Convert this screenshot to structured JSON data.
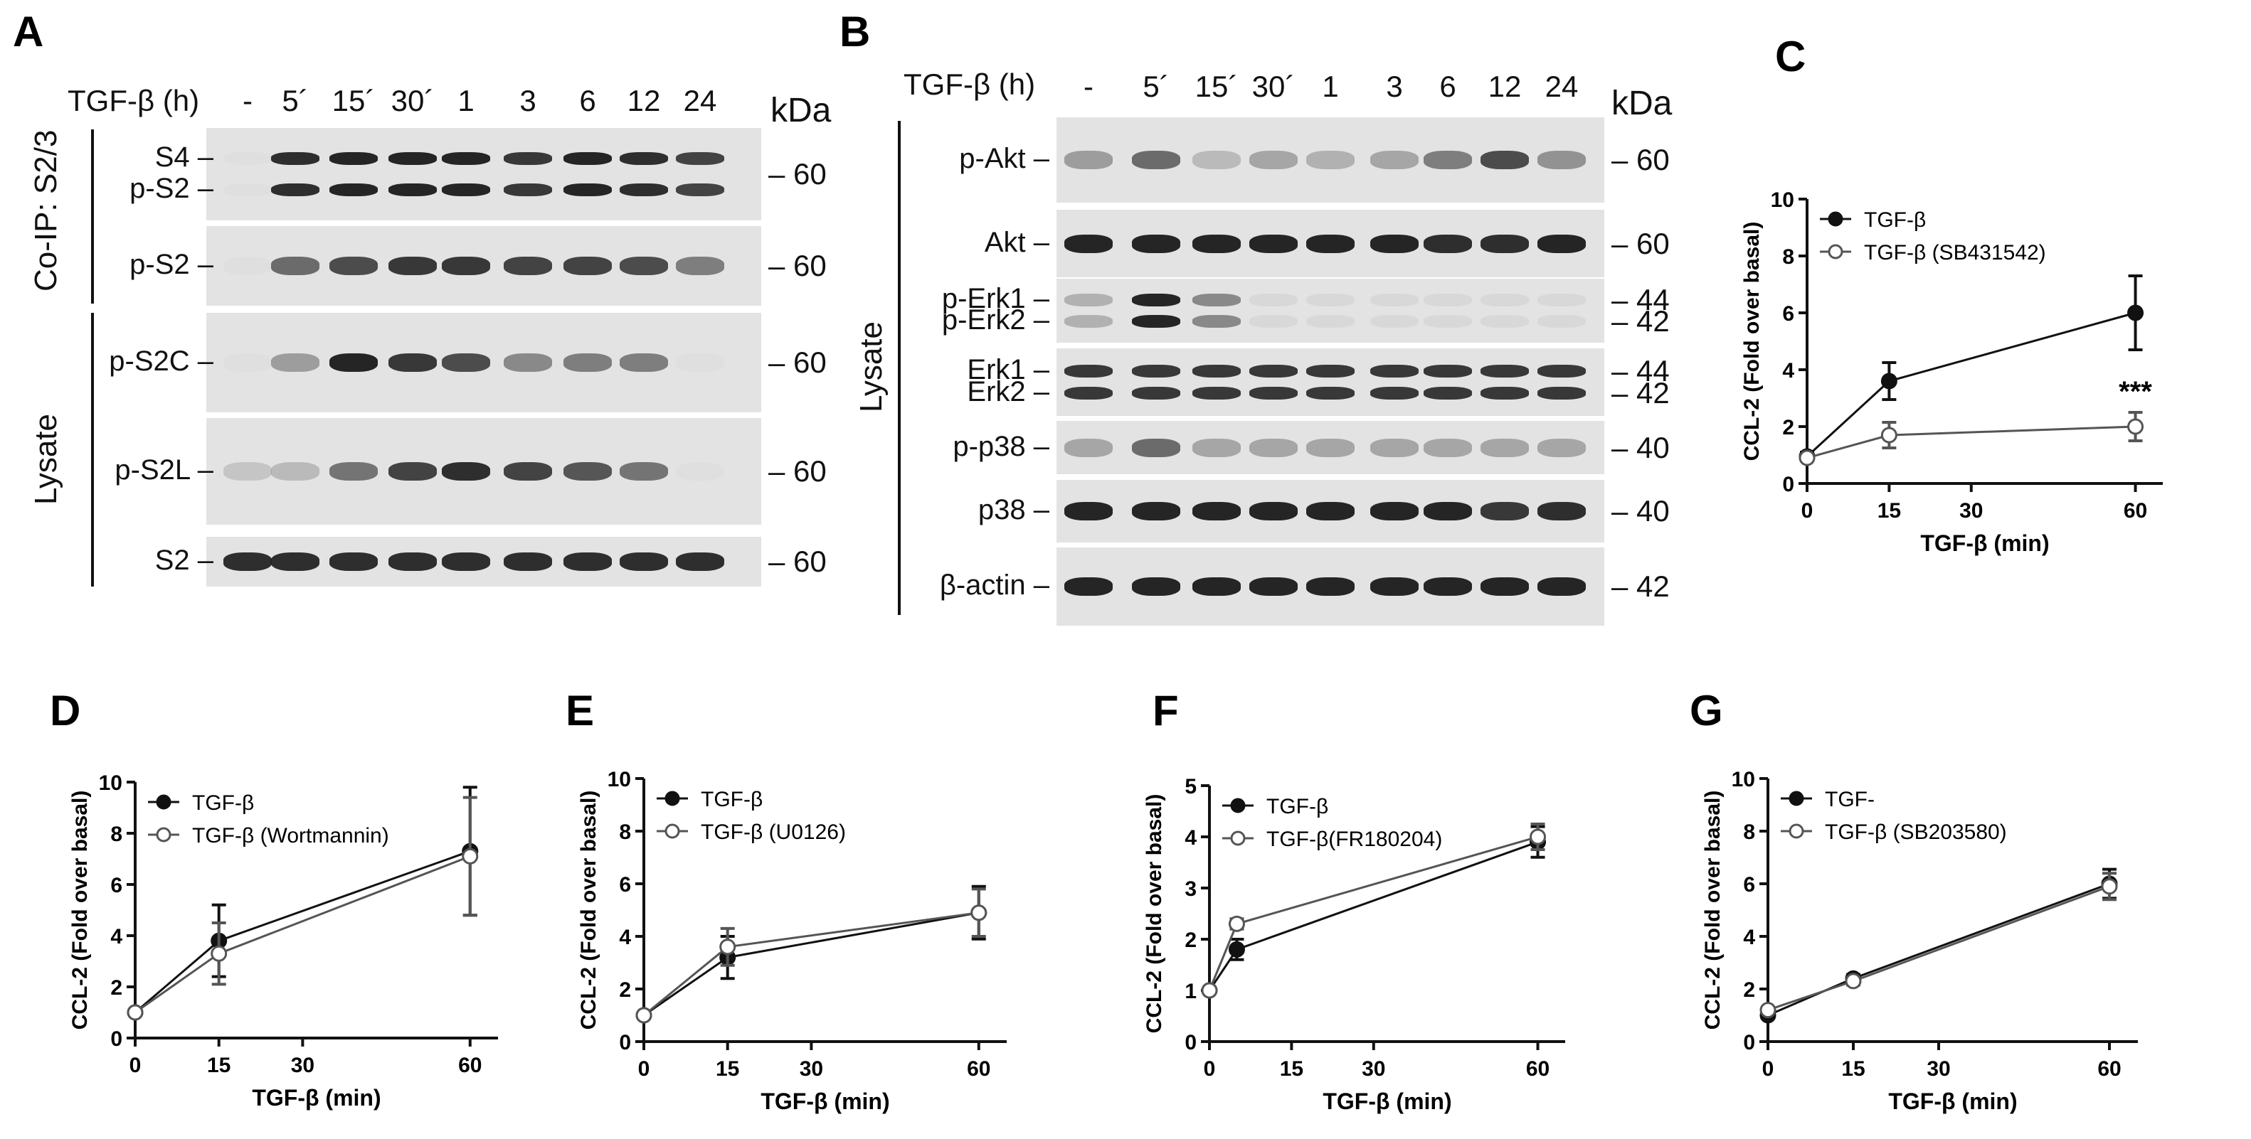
{
  "panel_labels": {
    "A": "A",
    "B": "B",
    "C": "C",
    "D": "D",
    "E": "E",
    "F": "F",
    "G": "G"
  },
  "blot_header": {
    "treatment": "TGF-β (h)",
    "lanes": [
      "-",
      "5´",
      "15´",
      "30´",
      "1",
      "3",
      "6",
      "12",
      "24"
    ],
    "mw_unit": "kDa"
  },
  "panel_a": {
    "group_coip": "Co-IP: S2/3",
    "group_lysate": "Lysate",
    "rows": [
      {
        "labels": [
          "S4",
          "p-S2"
        ],
        "marker": "60",
        "intensity": [
          0,
          0.9,
          0.95,
          0.95,
          0.95,
          0.85,
          0.95,
          0.9,
          0.8
        ]
      },
      {
        "labels": [
          "p-S2"
        ],
        "marker": "60",
        "intensity": [
          0,
          0.6,
          0.75,
          0.85,
          0.85,
          0.8,
          0.8,
          0.75,
          0.5
        ]
      },
      {
        "labels": [
          "p-S2C"
        ],
        "marker": "60",
        "intensity": [
          0,
          0.35,
          0.95,
          0.85,
          0.75,
          0.45,
          0.5,
          0.5,
          0
        ]
      },
      {
        "labels": [
          "p-S2L"
        ],
        "marker": "60",
        "intensity": [
          0.15,
          0.2,
          0.55,
          0.8,
          0.9,
          0.8,
          0.7,
          0.55,
          0
        ]
      },
      {
        "labels": [
          "S2"
        ],
        "marker": "60",
        "intensity": [
          0.9,
          0.9,
          0.9,
          0.9,
          0.9,
          0.9,
          0.9,
          0.9,
          0.9
        ]
      }
    ]
  },
  "panel_b": {
    "group_lysate": "Lysate",
    "rows": [
      {
        "labels": [
          "p-Akt"
        ],
        "markers": [
          "60"
        ],
        "intensity": [
          0.35,
          0.6,
          0.2,
          0.3,
          0.25,
          0.3,
          0.5,
          0.75,
          0.4
        ]
      },
      {
        "labels": [
          "Akt"
        ],
        "markers": [
          "60"
        ],
        "intensity": [
          0.95,
          0.95,
          0.95,
          0.95,
          0.95,
          0.95,
          0.9,
          0.9,
          0.95
        ]
      },
      {
        "labels": [
          "p-Erk1",
          "p-Erk2"
        ],
        "markers": [
          "44",
          "42"
        ],
        "intensity": [
          0.25,
          0.95,
          0.45,
          0.05,
          0.05,
          0.05,
          0.05,
          0.05,
          0.05
        ]
      },
      {
        "labels": [
          "Erk1",
          "Erk2"
        ],
        "markers": [
          "44",
          "42"
        ],
        "intensity": [
          0.85,
          0.85,
          0.85,
          0.85,
          0.85,
          0.85,
          0.85,
          0.85,
          0.85
        ]
      },
      {
        "labels": [
          "p-p38"
        ],
        "markers": [
          "40"
        ],
        "intensity": [
          0.3,
          0.6,
          0.3,
          0.3,
          0.3,
          0.3,
          0.3,
          0.3,
          0.3
        ]
      },
      {
        "labels": [
          "p38"
        ],
        "markers": [
          "40"
        ],
        "intensity": [
          0.95,
          0.95,
          0.95,
          0.95,
          0.95,
          0.95,
          0.95,
          0.85,
          0.9
        ]
      },
      {
        "labels": [
          "β-actin"
        ],
        "markers": [
          "42"
        ],
        "intensity": [
          0.95,
          0.95,
          0.95,
          0.95,
          0.95,
          0.95,
          0.95,
          0.95,
          0.95
        ]
      }
    ]
  },
  "chart_data": [
    {
      "panel": "C",
      "type": "line",
      "xlabel": "TGF-β (min)",
      "ylabel": "CCL-2  (Fold over basal)",
      "xlim": [
        0,
        65
      ],
      "ylim": [
        0,
        10
      ],
      "xticks": [
        0,
        15,
        30,
        60
      ],
      "yticks": [
        0,
        2,
        4,
        6,
        8,
        10
      ],
      "legend": "top-left",
      "annotation": {
        "text": "***",
        "x": 60,
        "y": 2.9
      },
      "series": [
        {
          "name": "TGF-β",
          "marker": "filled",
          "x": [
            0,
            15,
            60
          ],
          "y": [
            0.95,
            3.6,
            6.0
          ],
          "err": [
            0.15,
            0.65,
            1.3
          ]
        },
        {
          "name": "TGF-β (SB431542)",
          "marker": "open",
          "x": [
            0,
            15,
            60
          ],
          "y": [
            0.9,
            1.7,
            2.0
          ],
          "err": [
            0.1,
            0.45,
            0.5
          ]
        }
      ]
    },
    {
      "panel": "D",
      "type": "line",
      "xlabel": "TGF-β (min)",
      "ylabel": "CCL-2  (Fold over basal)",
      "xlim": [
        0,
        65
      ],
      "ylim": [
        0,
        10
      ],
      "xticks": [
        0,
        15,
        30,
        60
      ],
      "yticks": [
        0,
        2,
        4,
        6,
        8,
        10
      ],
      "legend": "top-left",
      "series": [
        {
          "name": "TGF-β",
          "marker": "filled",
          "x": [
            0,
            15,
            60
          ],
          "y": [
            1.0,
            3.8,
            7.3
          ],
          "err": [
            0.1,
            1.4,
            2.5
          ]
        },
        {
          "name": "TGF-β (Wortmannin)",
          "marker": "open",
          "x": [
            0,
            15,
            60
          ],
          "y": [
            1.0,
            3.3,
            7.1
          ],
          "err": [
            0.1,
            1.2,
            2.3
          ]
        }
      ]
    },
    {
      "panel": "E",
      "type": "line",
      "xlabel": "TGF-β (min)",
      "ylabel": "CCL-2  (Fold over basal)",
      "xlim": [
        0,
        65
      ],
      "ylim": [
        0,
        10
      ],
      "xticks": [
        0,
        15,
        30,
        60
      ],
      "yticks": [
        0,
        2,
        4,
        6,
        8,
        10
      ],
      "legend": "top-left",
      "series": [
        {
          "name": "TGF-β",
          "marker": "filled",
          "x": [
            0,
            15,
            60
          ],
          "y": [
            1.0,
            3.2,
            4.9
          ],
          "err": [
            0.1,
            0.8,
            1.0
          ]
        },
        {
          "name": "TGF-β (U0126)",
          "marker": "open",
          "x": [
            0,
            15,
            60
          ],
          "y": [
            1.0,
            3.6,
            4.9
          ],
          "err": [
            0.1,
            0.7,
            0.9
          ]
        }
      ]
    },
    {
      "panel": "F",
      "type": "line",
      "xlabel": "TGF-β (min)",
      "ylabel": "CCL-2  (Fold over basal)",
      "xlim": [
        0,
        65
      ],
      "ylim": [
        0,
        5
      ],
      "xticks": [
        0,
        15,
        30,
        60
      ],
      "yticks": [
        0,
        1,
        2,
        3,
        4,
        5
      ],
      "legend": "top-left",
      "series": [
        {
          "name": "TGF-β",
          "marker": "filled",
          "x": [
            0,
            5,
            60
          ],
          "y": [
            1.0,
            1.8,
            3.9
          ],
          "err": [
            0.05,
            0.2,
            0.3
          ]
        },
        {
          "name": "TGF-β(FR180204)",
          "marker": "open",
          "x": [
            0,
            5,
            60
          ],
          "y": [
            1.0,
            2.3,
            4.0
          ],
          "err": [
            0.05,
            0.1,
            0.25
          ]
        }
      ]
    },
    {
      "panel": "G",
      "type": "line",
      "xlabel": "TGF-β (min)",
      "ylabel": "CCL-2  (Fold over basal)",
      "xlim": [
        0,
        65
      ],
      "ylim": [
        0,
        10
      ],
      "xticks": [
        0,
        15,
        30,
        60
      ],
      "yticks": [
        0,
        2,
        4,
        6,
        8,
        10
      ],
      "legend": "top-left",
      "series": [
        {
          "name": "TGF-",
          "marker": "filled",
          "x": [
            0,
            15,
            60
          ],
          "y": [
            1.0,
            2.4,
            6.0
          ],
          "err": [
            0.1,
            0.15,
            0.55
          ]
        },
        {
          "name": "TGF-β (SB203580)",
          "marker": "open",
          "x": [
            0,
            15,
            60
          ],
          "y": [
            1.2,
            2.3,
            5.9
          ],
          "err": [
            0.1,
            0.15,
            0.5
          ]
        }
      ]
    }
  ]
}
